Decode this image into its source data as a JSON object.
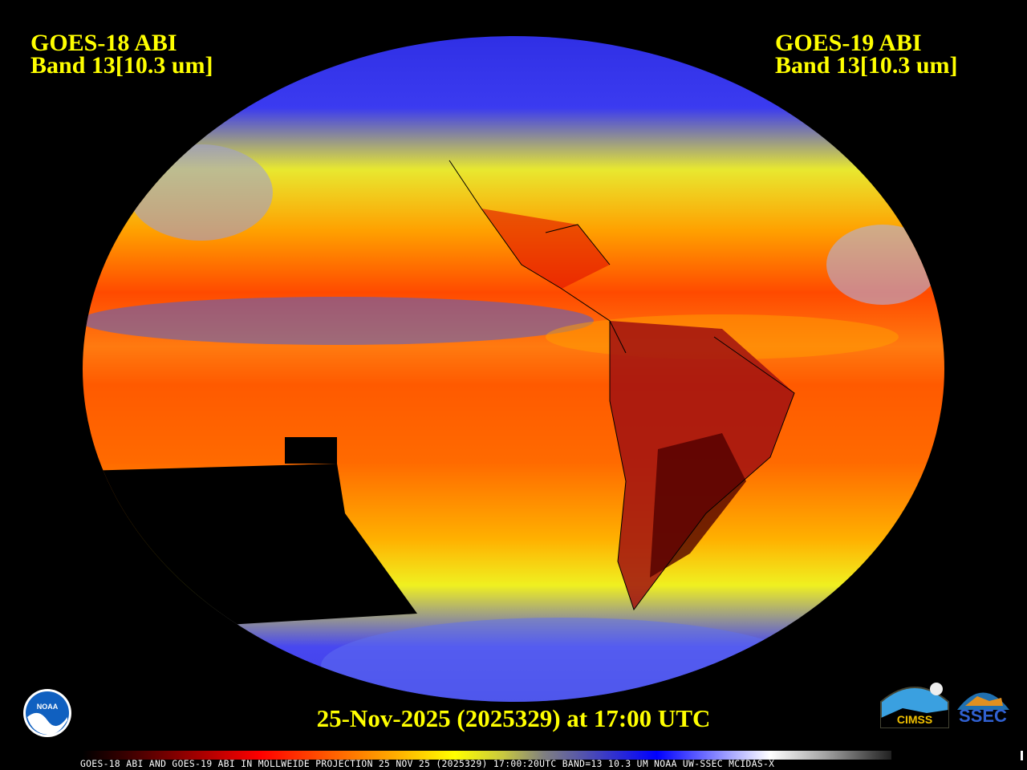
{
  "header": {
    "left": {
      "line1": "GOES-18 ABI",
      "line2": "Band 13[10.3 um]"
    },
    "right": {
      "line1": "GOES-19 ABI",
      "line2": "Band 13[10.3 um]"
    }
  },
  "date_label": "25-Nov-2025 (2025329) at 17:00 UTC",
  "caption": "GOES-18 ABI AND GOES-19 ABI IN MOLLWEIDE PROJECTION 25 NOV 25 (2025329) 17:00:20UTC BAND=13 10.3 UM NOAA UW-SSEC MCIDAS-X",
  "logos": {
    "noaa": "NOAA",
    "cimss": "CIMSS",
    "ssec": "SSEC"
  },
  "colors": {
    "text": "#ffff00",
    "background": "#000000",
    "ocean_warm": "#ff5a00",
    "land_hot": "#8b0000",
    "cloud_cold": "#2a2aff"
  }
}
